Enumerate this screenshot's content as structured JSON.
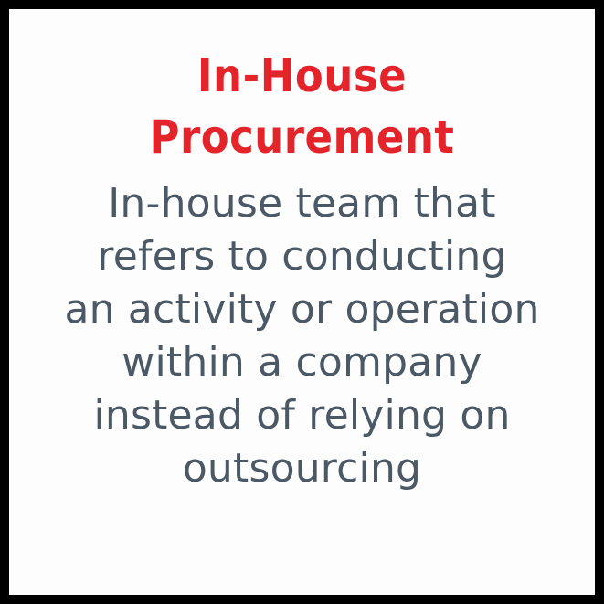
{
  "title_lines": [
    "In-House",
    "Procurement"
  ],
  "description_lines": [
    "In-house team that",
    "refers to conducting",
    "an activity or operation",
    "within a company",
    "instead of relying on",
    "outsourcing"
  ],
  "colors": {
    "frame": "#000000",
    "background": "#fdfdfd",
    "title": "#e3242b",
    "body": "#4b5966"
  }
}
